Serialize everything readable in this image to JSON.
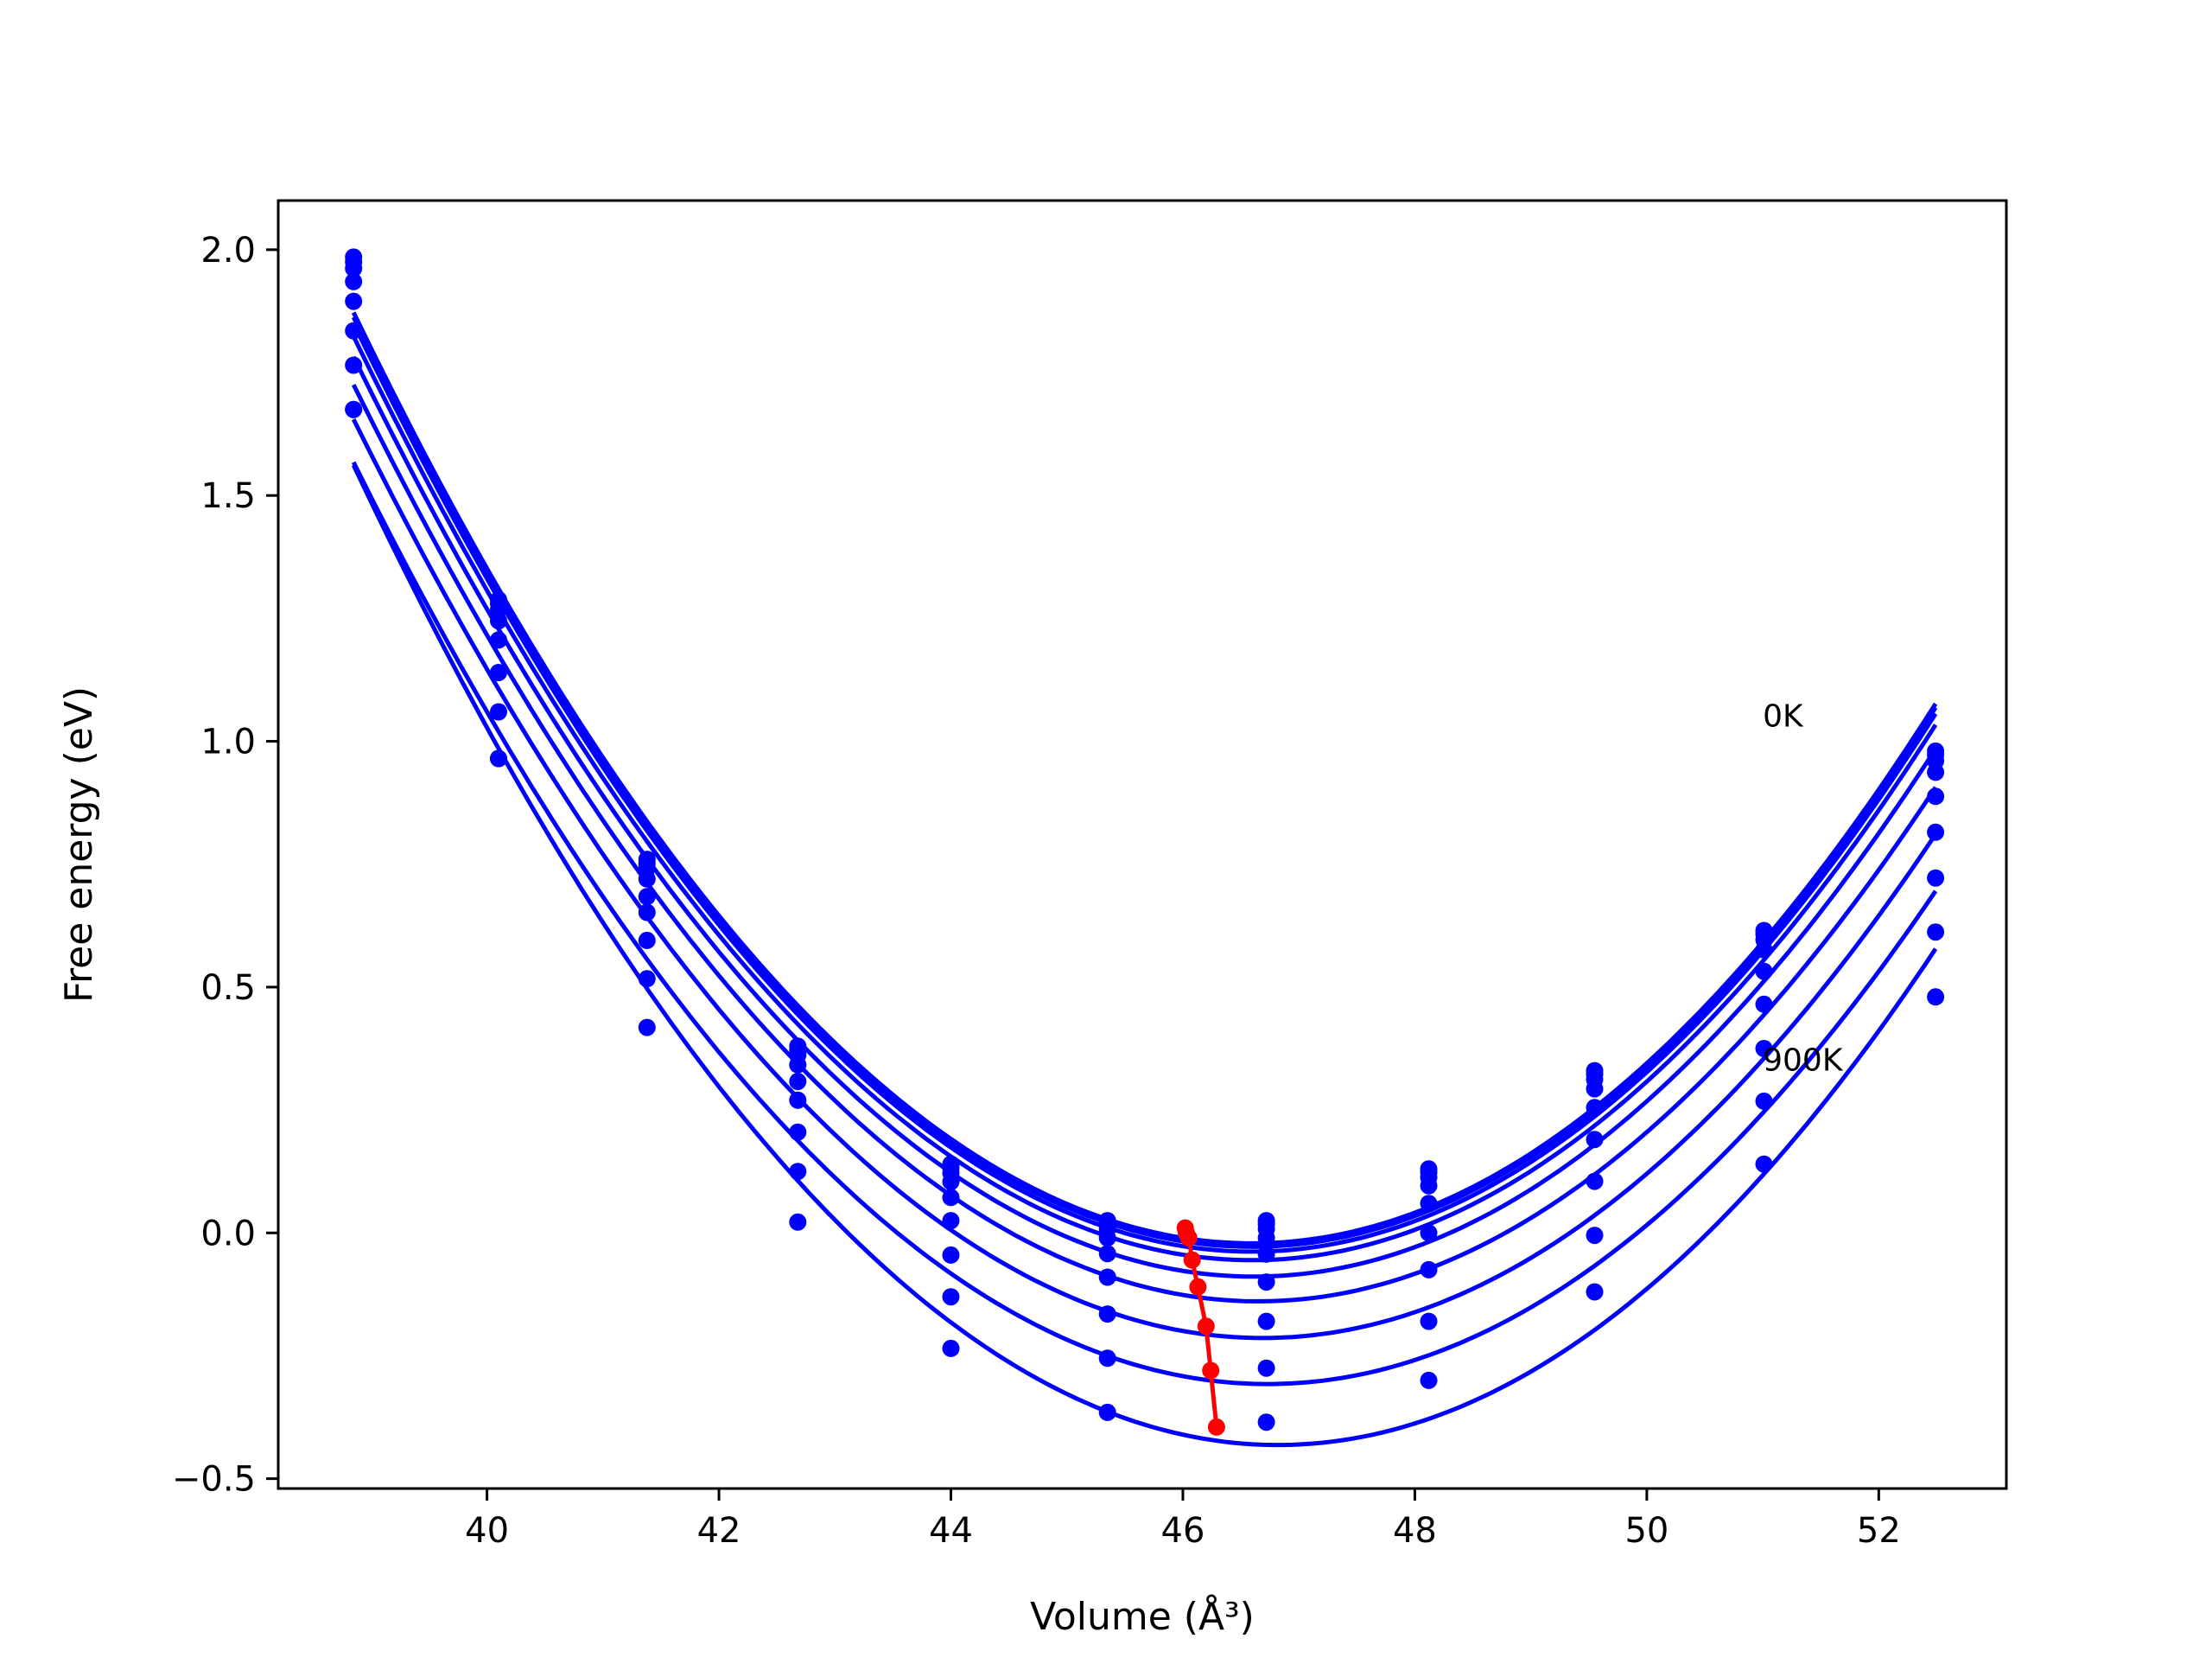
{
  "chart_data": {
    "type": "line",
    "title": "",
    "xlabel": "Volume (Å³)",
    "ylabel": "Free energy (eV)",
    "xlim": [
      38.2,
      53.1
    ],
    "ylim": [
      -0.52,
      2.1
    ],
    "xticks": [
      40,
      42,
      44,
      46,
      48,
      50,
      52
    ],
    "xtick_labels": [
      "40",
      "42",
      "44",
      "46",
      "48",
      "50",
      "52"
    ],
    "yticks": [
      -0.5,
      0.0,
      0.5,
      1.0,
      1.5,
      2.0
    ],
    "ytick_labels": [
      "−0.5",
      "0.0",
      "0.5",
      "1.0",
      "1.5",
      "2.0"
    ],
    "grid": false,
    "colors": {
      "series": "#0000ff",
      "minimum_path": "#ff0000"
    },
    "x": [
      38.85,
      40.1,
      41.38,
      42.68,
      44.0,
      45.35,
      46.72,
      48.12,
      49.55,
      51.01,
      52.49
    ],
    "series": [
      {
        "values": [
          1.985,
          1.288,
          0.76,
          0.38,
          0.14,
          0.025,
          0.025,
          0.13,
          0.33,
          0.615,
          0.98
        ]
      },
      {
        "values": [
          1.975,
          1.28,
          0.752,
          0.372,
          0.132,
          0.018,
          0.018,
          0.123,
          0.323,
          0.608,
          0.972
        ]
      },
      {
        "values": [
          1.962,
          1.268,
          0.742,
          0.362,
          0.122,
          0.008,
          0.008,
          0.113,
          0.312,
          0.596,
          0.96
        ]
      },
      {
        "values": [
          1.935,
          1.245,
          0.72,
          0.342,
          0.104,
          -0.01,
          -0.01,
          0.096,
          0.293,
          0.576,
          0.937
        ]
      },
      {
        "values": [
          1.895,
          1.206,
          0.684,
          0.308,
          0.072,
          -0.042,
          -0.043,
          0.06,
          0.255,
          0.532,
          0.888
        ]
      },
      {
        "values": [
          1.835,
          1.14,
          0.652,
          0.27,
          0.025,
          -0.09,
          -0.1,
          0.0,
          0.19,
          0.465,
          0.815
        ]
      },
      {
        "values": [
          1.765,
          1.06,
          0.595,
          0.205,
          -0.045,
          -0.165,
          -0.18,
          -0.075,
          0.105,
          0.375,
          0.722
        ]
      },
      {
        "values": [
          1.675,
          0.965,
          0.517,
          0.125,
          -0.13,
          -0.255,
          -0.275,
          -0.18,
          -0.005,
          0.268,
          0.612
        ]
      },
      {
        "values": [
          1.675,
          0.965,
          0.418,
          0.022,
          -0.235,
          -0.365,
          -0.385,
          -0.3,
          -0.12,
          0.14,
          0.48
        ]
      }
    ],
    "minimum_path": {
      "x": [
        46.02,
        46.03,
        46.05,
        46.08,
        46.13,
        46.2,
        46.24,
        46.29
      ],
      "y": [
        0.01,
        0.0,
        -0.01,
        -0.055,
        -0.11,
        -0.19,
        -0.28,
        -0.395
      ]
    },
    "annotations": [
      {
        "text": "0K",
        "x": 51.0,
        "y": 1.03
      },
      {
        "text": "900K",
        "x": 51.0,
        "y": 0.33
      }
    ]
  }
}
